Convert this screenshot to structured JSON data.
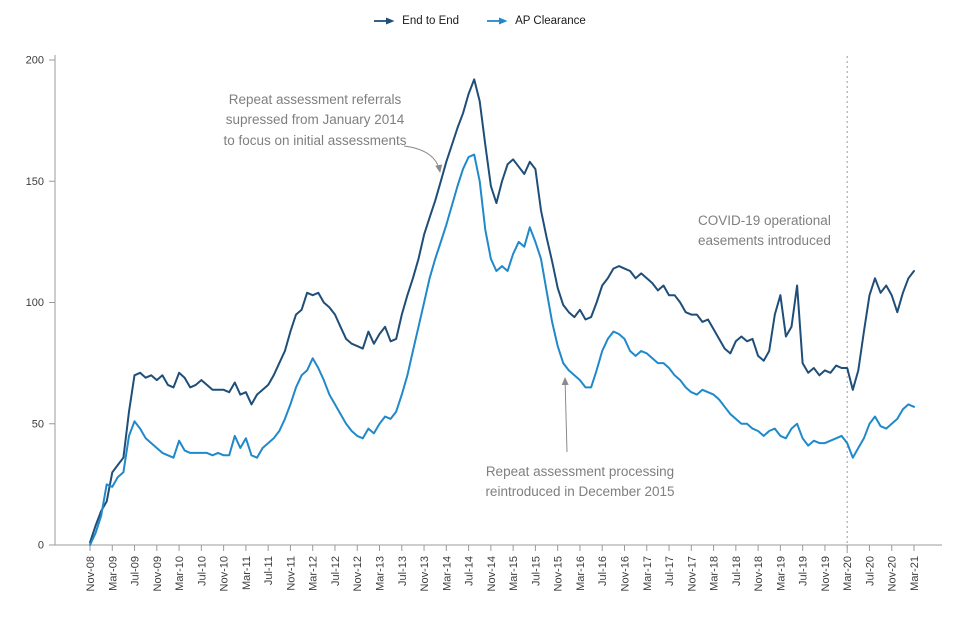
{
  "legend": {
    "items": [
      {
        "label": "End to End",
        "color": "#1f4e79"
      },
      {
        "label": "AP Clearance",
        "color": "#2089ca"
      }
    ]
  },
  "annotations": {
    "repeat_suppressed": {
      "lines": [
        "Repeat assessment referrals",
        "supressed from January 2014",
        "to focus on initial assessments"
      ]
    },
    "covid": {
      "lines": [
        "COVID-19 operational",
        "easements introduced"
      ]
    },
    "repeat_reintroduced": {
      "lines": [
        "Repeat assessment processing",
        "reintroduced in December 2015"
      ]
    }
  },
  "colors": {
    "end_to_end": "#1f4e79",
    "ap_clearance": "#2089ca",
    "annotation_text": "#7f7f7f",
    "axis": "#9b9b9b"
  },
  "chart_data": {
    "type": "line",
    "ylim": [
      0,
      200
    ],
    "yticks": [
      0,
      50,
      100,
      150,
      200
    ],
    "grid": false,
    "legend_position": "top-center",
    "vline": {
      "x": "Mar-20",
      "style": "dotted"
    },
    "x_tick_labels": [
      "Nov-08",
      "Mar-09",
      "Jul-09",
      "Nov-09",
      "Mar-10",
      "Jul-10",
      "Nov-10",
      "Mar-11",
      "Jul-11",
      "Nov-11",
      "Mar-12",
      "Jul-12",
      "Nov-12",
      "Mar-13",
      "Jul-13",
      "Nov-13",
      "Mar-14",
      "Jul-14",
      "Nov-14",
      "Mar-15",
      "Jul-15",
      "Nov-15",
      "Mar-16",
      "Jul-16",
      "Nov-16",
      "Mar-17",
      "Jul-17",
      "Nov-17",
      "Mar-18",
      "Jul-18",
      "Nov-18",
      "Mar-19",
      "Jul-19",
      "Nov-19",
      "Mar-20",
      "Jul-20",
      "Nov-20",
      "Mar-21"
    ],
    "x": [
      "Nov-08",
      "Dec-08",
      "Jan-09",
      "Feb-09",
      "Mar-09",
      "Apr-09",
      "May-09",
      "Jun-09",
      "Jul-09",
      "Aug-09",
      "Sep-09",
      "Oct-09",
      "Nov-09",
      "Dec-09",
      "Jan-10",
      "Feb-10",
      "Mar-10",
      "Apr-10",
      "May-10",
      "Jun-10",
      "Jul-10",
      "Aug-10",
      "Sep-10",
      "Oct-10",
      "Nov-10",
      "Dec-10",
      "Jan-11",
      "Feb-11",
      "Mar-11",
      "Apr-11",
      "May-11",
      "Jun-11",
      "Jul-11",
      "Aug-11",
      "Sep-11",
      "Oct-11",
      "Nov-11",
      "Dec-11",
      "Jan-12",
      "Feb-12",
      "Mar-12",
      "Apr-12",
      "May-12",
      "Jun-12",
      "Jul-12",
      "Aug-12",
      "Sep-12",
      "Oct-12",
      "Nov-12",
      "Dec-12",
      "Jan-13",
      "Feb-13",
      "Mar-13",
      "Apr-13",
      "May-13",
      "Jun-13",
      "Jul-13",
      "Aug-13",
      "Sep-13",
      "Oct-13",
      "Nov-13",
      "Dec-13",
      "Jan-14",
      "Feb-14",
      "Mar-14",
      "Apr-14",
      "May-14",
      "Jun-14",
      "Jul-14",
      "Aug-14",
      "Sep-14",
      "Oct-14",
      "Nov-14",
      "Dec-14",
      "Jan-15",
      "Feb-15",
      "Mar-15",
      "Apr-15",
      "May-15",
      "Jun-15",
      "Jul-15",
      "Aug-15",
      "Sep-15",
      "Oct-15",
      "Nov-15",
      "Dec-15",
      "Jan-16",
      "Feb-16",
      "Mar-16",
      "Apr-16",
      "May-16",
      "Jun-16",
      "Jul-16",
      "Aug-16",
      "Sep-16",
      "Oct-16",
      "Nov-16",
      "Dec-16",
      "Jan-17",
      "Feb-17",
      "Mar-17",
      "Apr-17",
      "May-17",
      "Jun-17",
      "Jul-17",
      "Aug-17",
      "Sep-17",
      "Oct-17",
      "Nov-17",
      "Dec-17",
      "Jan-18",
      "Feb-18",
      "Mar-18",
      "Apr-18",
      "May-18",
      "Jun-18",
      "Jul-18",
      "Aug-18",
      "Sep-18",
      "Oct-18",
      "Nov-18",
      "Dec-18",
      "Jan-19",
      "Feb-19",
      "Mar-19",
      "Apr-19",
      "May-19",
      "Jun-19",
      "Jul-19",
      "Aug-19",
      "Sep-19",
      "Oct-19",
      "Nov-19",
      "Dec-19",
      "Jan-20",
      "Feb-20",
      "Mar-20",
      "Apr-20",
      "May-20",
      "Jun-20",
      "Jul-20",
      "Aug-20",
      "Sep-20",
      "Oct-20",
      "Nov-20",
      "Dec-20",
      "Jan-21",
      "Feb-21",
      "Mar-21"
    ],
    "series": [
      {
        "name": "End to End",
        "color": "#1f4e79",
        "values": [
          1,
          8,
          14,
          18,
          30,
          33,
          36,
          55,
          70,
          71,
          69,
          70,
          68,
          70,
          66,
          65,
          71,
          69,
          65,
          66,
          68,
          66,
          64,
          64,
          64,
          63,
          67,
          62,
          63,
          58,
          62,
          64,
          66,
          70,
          75,
          80,
          88,
          95,
          97,
          104,
          103,
          104,
          100,
          98,
          95,
          90,
          85,
          83,
          82,
          81,
          88,
          83,
          87,
          90,
          84,
          85,
          95,
          103,
          110,
          118,
          128,
          135,
          142,
          150,
          158,
          165,
          172,
          178,
          186,
          192,
          183,
          165,
          148,
          141,
          150,
          157,
          159,
          156,
          153,
          158,
          155,
          138,
          127,
          117,
          106,
          99,
          96,
          94,
          97,
          93,
          94,
          100,
          107,
          110,
          114,
          115,
          114,
          113,
          110,
          112,
          110,
          108,
          105,
          107,
          103,
          103,
          100,
          96,
          95,
          95,
          92,
          93,
          89,
          85,
          81,
          79,
          84,
          86,
          84,
          85,
          78,
          76,
          80,
          95,
          103,
          86,
          90,
          107,
          75,
          71,
          73,
          70,
          72,
          71,
          74,
          73,
          73,
          64,
          72,
          88,
          103,
          110,
          104,
          107,
          103,
          96,
          104,
          110,
          113
        ]
      },
      {
        "name": "AP Clearance",
        "color": "#2089ca",
        "values": [
          0,
          5,
          12,
          25,
          24,
          28,
          30,
          45,
          51,
          48,
          44,
          42,
          40,
          38,
          37,
          36,
          43,
          39,
          38,
          38,
          38,
          38,
          37,
          38,
          37,
          37,
          45,
          40,
          44,
          37,
          36,
          40,
          42,
          44,
          47,
          52,
          58,
          65,
          70,
          72,
          77,
          73,
          68,
          62,
          58,
          54,
          50,
          47,
          45,
          44,
          48,
          46,
          50,
          53,
          52,
          55,
          62,
          70,
          80,
          90,
          100,
          110,
          118,
          125,
          132,
          140,
          148,
          155,
          160,
          161,
          150,
          130,
          118,
          113,
          115,
          113,
          120,
          125,
          123,
          131,
          125,
          118,
          105,
          92,
          82,
          75,
          72,
          70,
          68,
          65,
          65,
          72,
          80,
          85,
          88,
          87,
          85,
          80,
          78,
          80,
          79,
          77,
          75,
          75,
          73,
          70,
          68,
          65,
          63,
          62,
          64,
          63,
          62,
          60,
          57,
          54,
          52,
          50,
          50,
          48,
          47,
          45,
          47,
          48,
          45,
          44,
          48,
          50,
          44,
          41,
          43,
          42,
          42,
          43,
          44,
          45,
          42,
          36,
          40,
          44,
          50,
          53,
          49,
          48,
          50,
          52,
          56,
          58,
          57
        ]
      }
    ]
  }
}
